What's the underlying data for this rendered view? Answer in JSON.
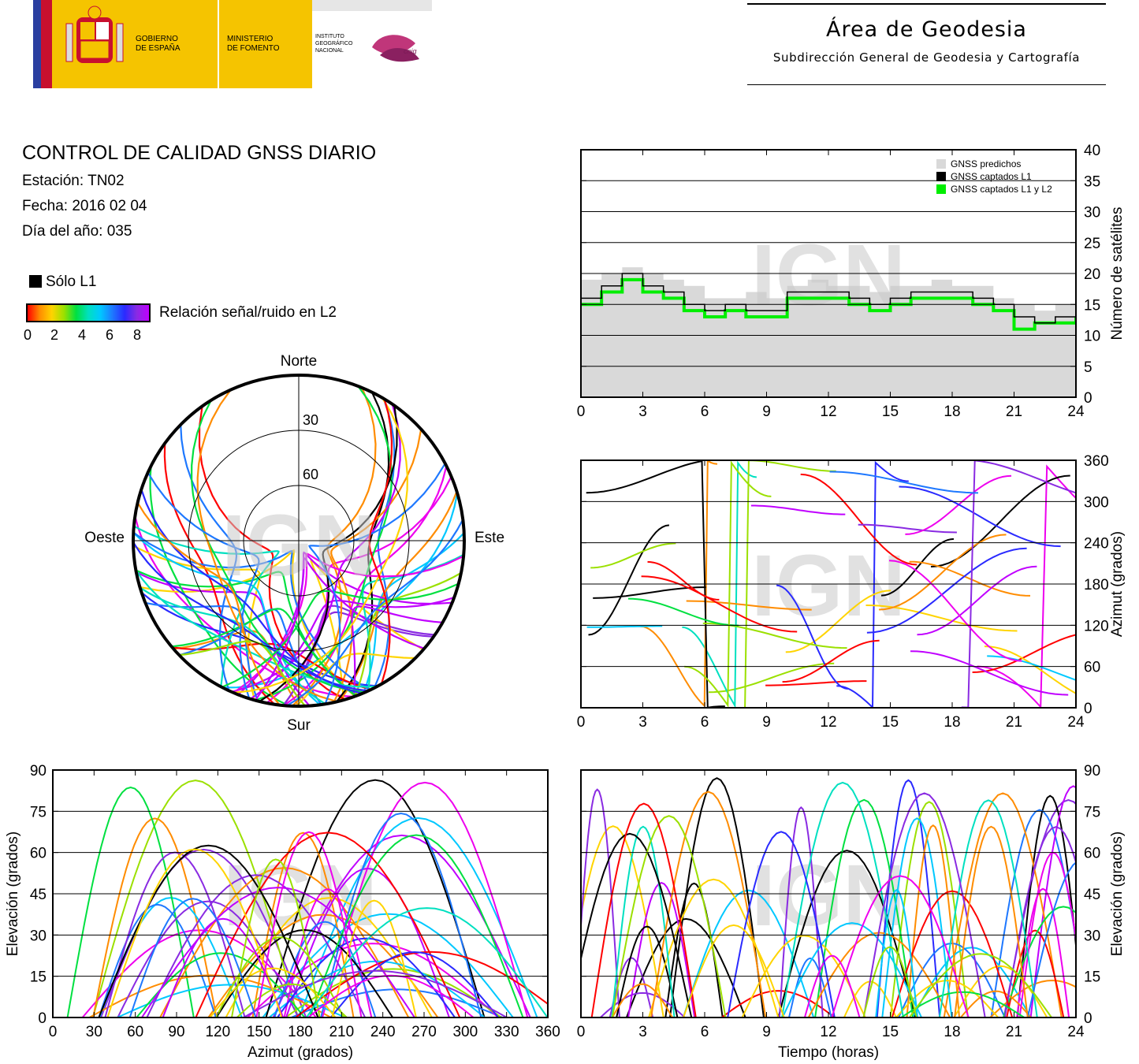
{
  "header": {
    "logo_gobierno": "GOBIERNO\nDE ESPAÑA",
    "logo_ministerio": "MINISTERIO\nDE FOMENTO",
    "logo_ign": "INSTITUTO\nGEOGRÁFICO\nNACIONAL",
    "logo_cnig": "cnig",
    "title": "Área de Geodesia",
    "subtitle": "Subdirección General de Geodesia y Cartografía"
  },
  "info": {
    "title": "CONTROL DE CALIDAD GNSS DIARIO",
    "station": "Estación: TN02",
    "date": "Fecha: 2016 02 04",
    "doy": "Día del año: 035"
  },
  "legend": {
    "solo_l1": "Sólo L1",
    "snr_label": "Relación señal/ruido en L2",
    "ticks": [
      "0",
      "2",
      "4",
      "6",
      "8"
    ]
  },
  "watermark": "IGN",
  "colors": {
    "predicted": "#d9d9d9",
    "l1": "#000000",
    "l1l2": "#00ee00",
    "snr_scale": [
      "#ff0000",
      "#ff8c00",
      "#ffd400",
      "#9be000",
      "#00e040",
      "#00e0c0",
      "#00c8ff",
      "#1e78ff",
      "#2a2aff",
      "#8a2be2",
      "#c000ff",
      "#ee00ee"
    ]
  },
  "chart_data": [
    {
      "id": "satellites",
      "type": "area",
      "xlabel": "",
      "ylabel": "Número de satélites",
      "xlim": [
        0,
        24
      ],
      "ylim": [
        0,
        40
      ],
      "xticks": [
        "0",
        "3",
        "6",
        "9",
        "12",
        "15",
        "18",
        "21",
        "24"
      ],
      "yticks": [
        "0",
        "5",
        "10",
        "15",
        "20",
        "25",
        "30",
        "35",
        "40"
      ],
      "grid": true,
      "legend": "top-right",
      "legend_entries": [
        "GNSS predichos",
        "GNSS captados L1",
        "GNSS captados L1 y L2"
      ],
      "x": [
        0,
        1,
        2,
        3,
        4,
        5,
        6,
        7,
        8,
        9,
        10,
        11,
        12,
        13,
        14,
        15,
        16,
        17,
        18,
        19,
        20,
        21,
        22,
        23,
        24
      ],
      "series": [
        {
          "name": "GNSS predichos",
          "values": [
            19,
            20,
            21,
            20,
            19,
            18,
            16,
            16,
            17,
            16,
            18,
            19,
            18,
            18,
            17,
            18,
            18,
            19,
            18,
            18,
            16,
            15,
            14,
            15,
            16
          ]
        },
        {
          "name": "GNSS captados L1",
          "values": [
            16,
            18,
            20,
            18,
            17,
            15,
            14,
            15,
            14,
            14,
            17,
            17,
            17,
            16,
            15,
            16,
            17,
            17,
            17,
            16,
            15,
            13,
            12,
            13,
            14
          ]
        },
        {
          "name": "GNSS captados L1 y L2",
          "values": [
            15,
            17,
            19,
            17,
            16,
            14,
            13,
            14,
            13,
            13,
            16,
            16,
            16,
            15,
            14,
            15,
            16,
            16,
            16,
            15,
            14,
            11,
            12,
            12,
            13
          ]
        }
      ]
    },
    {
      "id": "skyplot",
      "type": "scatter",
      "labels": {
        "north": "Norte",
        "south": "Sur",
        "west": "Oeste",
        "east": "Este"
      },
      "rings": [
        "30",
        "60"
      ]
    },
    {
      "id": "azimuth-time",
      "type": "scatter",
      "xlabel": "",
      "ylabel": "Azimut (grados)",
      "xlim": [
        0,
        24
      ],
      "ylim": [
        0,
        360
      ],
      "xticks": [
        "0",
        "3",
        "6",
        "9",
        "12",
        "15",
        "18",
        "21",
        "24"
      ],
      "yticks": [
        "0",
        "60",
        "120",
        "180",
        "240",
        "300",
        "360"
      ],
      "grid": true
    },
    {
      "id": "elevation-azimuth",
      "type": "scatter",
      "xlabel": "Azimut (grados)",
      "ylabel": "Elevación (grados)",
      "xlim": [
        0,
        360
      ],
      "ylim": [
        0,
        90
      ],
      "xticks": [
        "0",
        "30",
        "60",
        "90",
        "120",
        "150",
        "180",
        "210",
        "240",
        "270",
        "300",
        "330",
        "360"
      ],
      "yticks": [
        "0",
        "15",
        "30",
        "45",
        "60",
        "75",
        "90"
      ],
      "grid": true
    },
    {
      "id": "elevation-time",
      "type": "scatter",
      "xlabel": "Tiempo (horas)",
      "ylabel": "Elevación (grados)",
      "xlim": [
        0,
        24
      ],
      "ylim": [
        0,
        90
      ],
      "xticks": [
        "0",
        "3",
        "6",
        "9",
        "12",
        "15",
        "18",
        "21",
        "24"
      ],
      "yticks": [
        "0",
        "15",
        "30",
        "45",
        "60",
        "75",
        "90"
      ],
      "grid": true
    }
  ]
}
